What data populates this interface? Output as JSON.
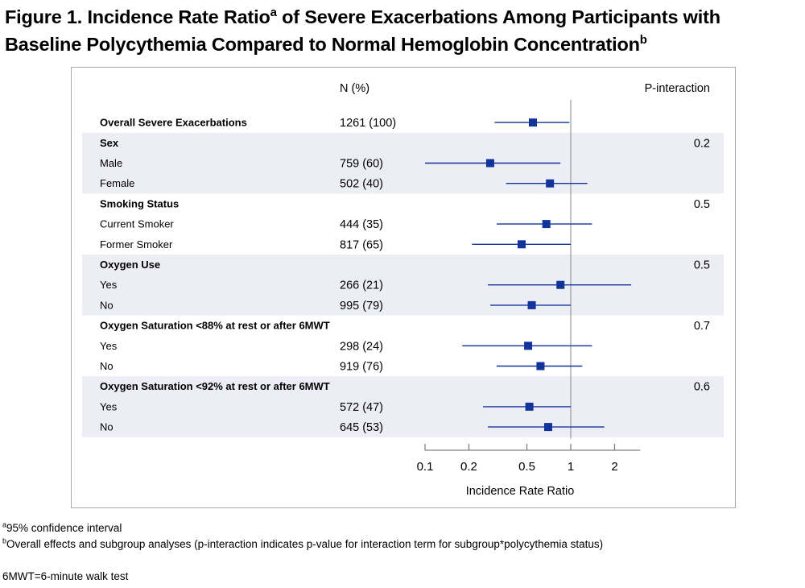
{
  "title": {
    "line1": "Figure 1. Incidence Rate Ratio",
    "sup_a": "a",
    "line1_rest": " of Severe Exacerbations Among Participants with",
    "line2": "Baseline Polycythemia Compared to Normal Hemoglobin Concentration",
    "sup_b": "b"
  },
  "footnotes": {
    "a_mark": "a",
    "a_text": "95% confidence interval",
    "b_mark": "b",
    "b_text": "Overall effects and subgroup analyses (p-interaction indicates p-value for interaction term for subgroup*polycythemia status)",
    "abbrev": "6MWT=6-minute walk test"
  },
  "colors": {
    "marker": "#12339a",
    "band": "#ecedf5",
    "ref_line": "#a0a0a0",
    "axis": "#808080"
  },
  "chart_data": {
    "type": "forest",
    "columns": {
      "n_header": "N (%)",
      "p_header": "P-interaction"
    },
    "xlabel": "Incidence Rate Ratio",
    "xscale": "log",
    "xlim": [
      0.1,
      3
    ],
    "ticks": [
      0.1,
      0.2,
      0.5,
      1,
      2
    ],
    "tick_labels": [
      "0.1",
      "0.2",
      "0.5",
      "1",
      "2"
    ],
    "reference_line": 1,
    "rows": [
      {
        "label": "Overall Severe Exacerbations",
        "bold": true,
        "n": "1261 (100)",
        "est": 0.55,
        "lo": 0.3,
        "hi": 0.98,
        "p": "",
        "band": false
      },
      {
        "label": "Sex",
        "bold": true,
        "n": "",
        "est": null,
        "lo": null,
        "hi": null,
        "p": "0.2",
        "band": true
      },
      {
        "label": "Male",
        "bold": false,
        "n": "759 (60)",
        "est": 0.28,
        "lo": 0.1,
        "hi": 0.85,
        "p": "",
        "band": true
      },
      {
        "label": "Female",
        "bold": false,
        "n": "502 (40)",
        "est": 0.72,
        "lo": 0.36,
        "hi": 1.3,
        "p": "",
        "band": true
      },
      {
        "label": "Smoking Status",
        "bold": true,
        "n": "",
        "est": null,
        "lo": null,
        "hi": null,
        "p": "0.5",
        "band": false
      },
      {
        "label": "Current Smoker",
        "bold": false,
        "n": "444 (35)",
        "est": 0.68,
        "lo": 0.31,
        "hi": 1.4,
        "p": "",
        "band": false
      },
      {
        "label": "Former Smoker",
        "bold": false,
        "n": "817 (65)",
        "est": 0.46,
        "lo": 0.21,
        "hi": 1.0,
        "p": "",
        "band": false
      },
      {
        "label": "Oxygen Use",
        "bold": true,
        "n": "",
        "est": null,
        "lo": null,
        "hi": null,
        "p": "0.5",
        "band": true
      },
      {
        "label": "Yes",
        "bold": false,
        "n": "266 (21)",
        "est": 0.85,
        "lo": 0.27,
        "hi": 2.6,
        "p": "",
        "band": true
      },
      {
        "label": "No",
        "bold": false,
        "n": "995 (79)",
        "est": 0.54,
        "lo": 0.28,
        "hi": 1.0,
        "p": "",
        "band": true
      },
      {
        "label": "Oxygen Saturation <88% at rest or after 6MWT",
        "bold": true,
        "n": "",
        "est": null,
        "lo": null,
        "hi": null,
        "p": "0.7",
        "band": false
      },
      {
        "label": "Yes",
        "bold": false,
        "n": "298 (24)",
        "est": 0.51,
        "lo": 0.18,
        "hi": 1.4,
        "p": "",
        "band": false
      },
      {
        "label": "No",
        "bold": false,
        "n": "919 (76)",
        "est": 0.62,
        "lo": 0.31,
        "hi": 1.2,
        "p": "",
        "band": false
      },
      {
        "label": "Oxygen Saturation <92% at rest or after 6MWT",
        "bold": true,
        "n": "",
        "est": null,
        "lo": null,
        "hi": null,
        "p": "0.6",
        "band": true
      },
      {
        "label": "Yes",
        "bold": false,
        "n": "572 (47)",
        "est": 0.52,
        "lo": 0.25,
        "hi": 1.0,
        "p": "",
        "band": true
      },
      {
        "label": "No",
        "bold": false,
        "n": "645 (53)",
        "est": 0.7,
        "lo": 0.27,
        "hi": 1.7,
        "p": "",
        "band": true
      }
    ]
  }
}
